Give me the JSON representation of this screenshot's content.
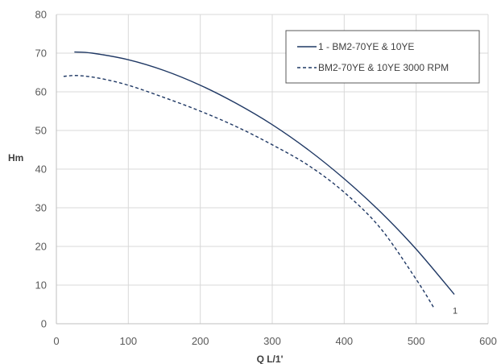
{
  "chart_data": {
    "type": "line",
    "xlabel": "Q L/1'",
    "ylabel": "Hm",
    "xlim": [
      0,
      600
    ],
    "ylim": [
      0,
      80
    ],
    "xticks": [
      "0",
      "100",
      "200",
      "300",
      "400",
      "500",
      "600"
    ],
    "yticks": [
      "0",
      "10",
      "20",
      "30",
      "40",
      "50",
      "60",
      "70",
      "80"
    ],
    "grid": true,
    "legend_position": "top-right",
    "series": [
      {
        "name": "1 - BM2-70YE & 10YE",
        "style": "solid",
        "color": "#1f3864",
        "end_label": "1",
        "x": [
          25,
          50,
          100,
          150,
          200,
          250,
          300,
          350,
          400,
          450,
          500,
          553
        ],
        "y": [
          70.3,
          70.0,
          68.3,
          65.5,
          61.7,
          57.0,
          51.5,
          45.0,
          37.5,
          29.0,
          19.3,
          7.6
        ]
      },
      {
        "name": "BM2-70YE & 10YE 3000 RPM",
        "style": "dashed",
        "color": "#1f3864",
        "x": [
          10,
          30,
          60,
          100,
          150,
          200,
          250,
          300,
          350,
          400,
          450,
          500,
          525
        ],
        "y": [
          64.0,
          64.2,
          63.5,
          61.7,
          58.5,
          55.0,
          51.0,
          46.3,
          41.0,
          34.0,
          24.8,
          11.5,
          4.0
        ]
      }
    ]
  }
}
